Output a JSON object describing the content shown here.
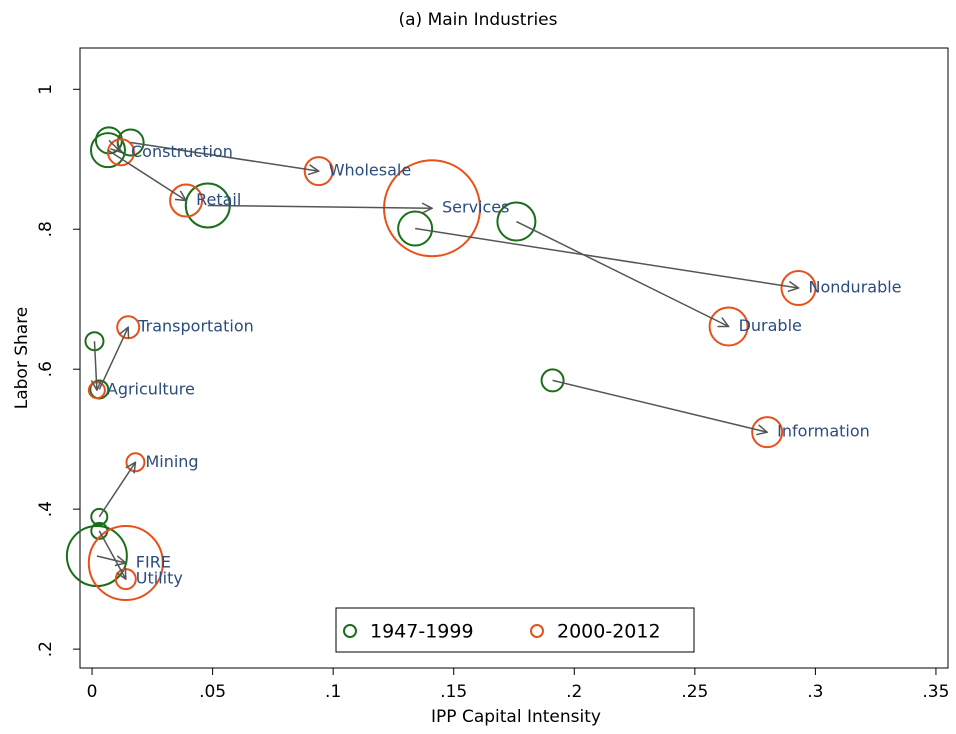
{
  "chart_data": {
    "type": "scatter",
    "title": "(a) Main Industries",
    "x_label": "IPP Capital Intensity",
    "y_label": "Labor Share",
    "labels": [
      "Construction",
      "Wholesale",
      "Retail",
      "Services",
      "Nondurable",
      "Durable",
      "Information",
      "Agriculture",
      "Transportation",
      "Mining",
      "FIRE",
      "Utility"
    ],
    "series": [
      {
        "name": "1947-1999",
        "color": "#1a6e1a",
        "x": [
          0.007,
          0.016,
          0.0066,
          0.048,
          0.134,
          0.176,
          0.191,
          0.001,
          0.003,
          0.003,
          0.002,
          0.003
        ],
        "values": [
          0.927,
          0.924,
          0.913,
          0.834,
          0.801,
          0.811,
          0.584,
          0.64,
          0.571,
          0.389,
          0.333,
          0.369
        ],
        "sizes": [
          169,
          169,
          289,
          484,
          289,
          361,
          121,
          81,
          81,
          64,
          900,
          64
        ]
      },
      {
        "name": "2000-2012",
        "color": "#e8501a",
        "x": [
          0.012,
          0.094,
          0.039,
          0.141,
          0.293,
          0.264,
          0.28,
          0.002,
          0.015,
          0.018,
          0.014,
          0.014
        ],
        "values": [
          0.91,
          0.883,
          0.841,
          0.83,
          0.716,
          0.661,
          0.51,
          0.57,
          0.66,
          0.467,
          0.323,
          0.3
        ],
        "sizes": [
          169,
          196,
          256,
          2304,
          289,
          361,
          225,
          64,
          121,
          81,
          1369,
          100
        ]
      }
    ],
    "xlim": [
      -0.005,
      0.355
    ],
    "ylim": [
      0.173,
      1.059
    ],
    "xticks": [
      0,
      {
        "value": 0.05,
        "label": ".05"
      },
      {
        "value": 0.1,
        "label": ".1"
      },
      {
        "value": 0.15,
        "label": ".15"
      },
      {
        "value": 0.2,
        "label": ".2"
      },
      {
        "value": 0.25,
        "label": ".25"
      },
      {
        "value": 0.3,
        "label": ".3"
      },
      {
        "value": 0.35,
        "label": ".35"
      }
    ],
    "yticks": [
      {
        "value": 0.2,
        "label": ".2"
      },
      {
        "value": 0.4,
        "label": ".4"
      },
      {
        "value": 0.6,
        "label": ".6"
      },
      {
        "value": 0.8,
        "label": ".8"
      },
      1
    ],
    "legend": "bottom"
  }
}
